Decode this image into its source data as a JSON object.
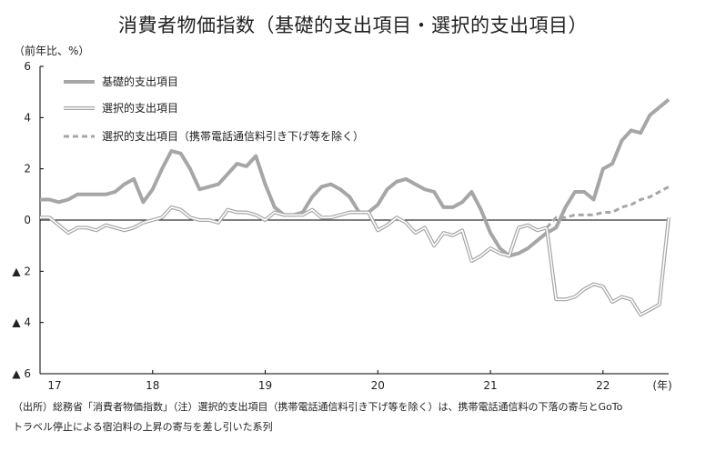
{
  "title": "消費者物価指数（基礎的支出項目・選択的支出項目）",
  "unit_label": "（前年比、%）",
  "notes": {
    "line1": "（出所）総務省「消費者物価指数」（注）選択的支出項目（携帯電話通信料引き下げ等を除く）は、携帯電話通信料の下落の寄与とGoTo",
    "line2": "トラベル停止による宿泊料の上昇の寄与を差し引いた系列"
  },
  "colors": {
    "basic": "#a6a6a6",
    "selective": "#a6a6a6",
    "excl": "#a6a6a6",
    "axis": "#000000"
  },
  "chart_data": {
    "type": "line",
    "ylim": [
      -6,
      6
    ],
    "yticks": [
      6,
      4,
      2,
      0,
      -2,
      -4,
      -6
    ],
    "ytick_labels": [
      "6",
      "4",
      "2",
      "0",
      "▲ 2",
      "▲ 4",
      "▲ 6"
    ],
    "x_tick_labels": [
      "17",
      "18",
      "19",
      "20",
      "21",
      "22"
    ],
    "x_unit_label": "(年)",
    "x_start": "2017-01",
    "x_end": "2022-06",
    "series": [
      {
        "name": "基礎的支出項目",
        "style": "thick-solid",
        "values": [
          0.8,
          0.8,
          0.7,
          0.8,
          1.0,
          1.0,
          1.0,
          1.0,
          1.1,
          1.4,
          1.6,
          0.7,
          1.2,
          2.0,
          2.7,
          2.6,
          2.0,
          1.2,
          1.3,
          1.4,
          1.8,
          2.2,
          2.1,
          2.5,
          1.4,
          0.5,
          0.2,
          0.2,
          0.3,
          0.9,
          1.3,
          1.4,
          1.2,
          0.9,
          0.3,
          0.3,
          0.6,
          1.2,
          1.5,
          1.6,
          1.4,
          1.2,
          1.1,
          0.5,
          0.5,
          0.7,
          1.1,
          0.4,
          -0.5,
          -1.1,
          -1.4,
          -1.3,
          -1.1,
          -0.8,
          -0.5,
          -0.3,
          0.5,
          1.1,
          1.1,
          0.8,
          2.0,
          2.2,
          3.1,
          3.5,
          3.4,
          4.1,
          4.4,
          4.7
        ]
      },
      {
        "name": "選択的支出項目",
        "style": "double-line",
        "values": [
          0.1,
          0.1,
          -0.2,
          -0.5,
          -0.3,
          -0.3,
          -0.4,
          -0.2,
          -0.3,
          -0.4,
          -0.3,
          -0.1,
          0.0,
          0.1,
          0.5,
          0.4,
          0.1,
          0.0,
          0.0,
          -0.1,
          0.4,
          0.3,
          0.3,
          0.2,
          0.0,
          0.3,
          0.2,
          0.2,
          0.2,
          0.4,
          0.1,
          0.1,
          0.2,
          0.3,
          0.3,
          0.3,
          -0.4,
          -0.2,
          0.1,
          -0.1,
          -0.5,
          -0.3,
          -1.0,
          -0.5,
          -0.6,
          -0.4,
          -1.6,
          -1.4,
          -1.1,
          -1.3,
          -1.4,
          -0.3,
          -0.2,
          -0.4,
          -0.3,
          -3.1,
          -3.1,
          -3.0,
          -2.7,
          -2.5,
          -2.6,
          -3.2,
          -3.0,
          -3.1,
          -3.7,
          -3.5,
          -3.3,
          0.1
        ]
      },
      {
        "name": "選択的支出項目（携帯電話通信料引き下げ等を除く）",
        "style": "dashed",
        "values": [
          null,
          null,
          null,
          null,
          null,
          null,
          null,
          null,
          null,
          null,
          null,
          null,
          null,
          null,
          null,
          null,
          null,
          null,
          null,
          null,
          null,
          null,
          null,
          null,
          null,
          null,
          null,
          null,
          null,
          null,
          null,
          null,
          null,
          null,
          null,
          null,
          null,
          null,
          null,
          null,
          null,
          null,
          null,
          null,
          null,
          null,
          null,
          null,
          null,
          null,
          null,
          null,
          null,
          null,
          -0.3,
          0.1,
          0.1,
          0.2,
          0.2,
          0.2,
          0.3,
          0.3,
          0.5,
          0.6,
          0.8,
          0.9,
          1.1,
          1.3
        ]
      }
    ]
  }
}
